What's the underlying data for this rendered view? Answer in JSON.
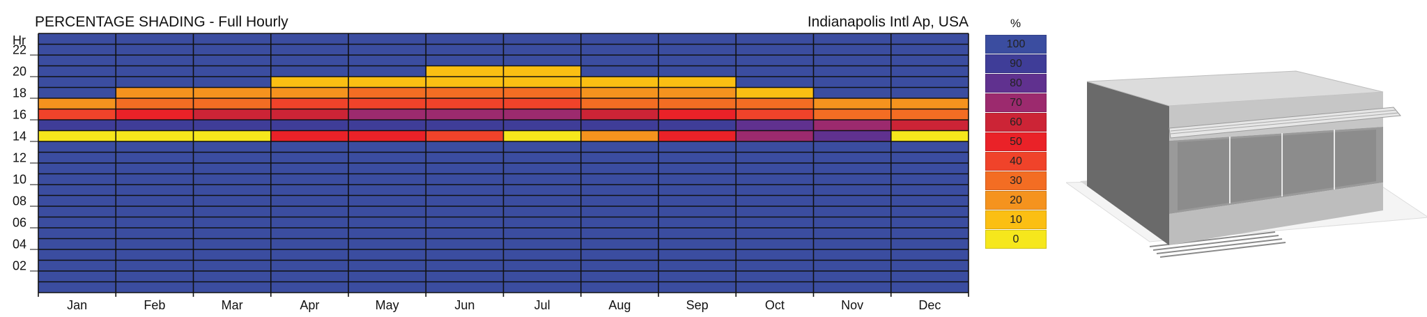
{
  "chart_data": {
    "type": "heatmap",
    "title": "PERCENTAGE SHADING - Full Hourly",
    "location": "Indianapolis Intl Ap, USA",
    "ylabel": "Hr",
    "y_ticks": [
      "22",
      "20",
      "18",
      "16",
      "14",
      "12",
      "10",
      "08",
      "06",
      "04",
      "02"
    ],
    "months": [
      "Jan",
      "Feb",
      "Mar",
      "Apr",
      "May",
      "Jun",
      "Jul",
      "Aug",
      "Sep",
      "Oct",
      "Nov",
      "Dec"
    ],
    "legend_unit": "%",
    "legend": [
      {
        "label": "100",
        "color": "#3b4da0"
      },
      {
        "label": "90",
        "color": "#3f3d98"
      },
      {
        "label": "80",
        "color": "#60318f"
      },
      {
        "label": "70",
        "color": "#9c2a6e"
      },
      {
        "label": "60",
        "color": "#cc2436"
      },
      {
        "label": "50",
        "color": "#ea2228"
      },
      {
        "label": "40",
        "color": "#f0432a"
      },
      {
        "label": "30",
        "color": "#f36d23"
      },
      {
        "label": "20",
        "color": "#f5931e"
      },
      {
        "label": "10",
        "color": "#fbbf13"
      },
      {
        "label": "0",
        "color": "#f6e71c"
      }
    ],
    "default_value": 100,
    "hour_profiles": [
      {
        "hour": 20,
        "values": [
          100,
          100,
          100,
          100,
          100,
          10,
          10,
          100,
          100,
          100,
          100,
          100
        ]
      },
      {
        "hour": 19,
        "values": [
          100,
          100,
          100,
          10,
          10,
          10,
          10,
          10,
          10,
          100,
          100,
          100
        ]
      },
      {
        "hour": 18,
        "values": [
          100,
          20,
          20,
          20,
          30,
          30,
          30,
          20,
          20,
          10,
          100,
          100
        ]
      },
      {
        "hour": 17,
        "values": [
          20,
          30,
          30,
          40,
          40,
          40,
          40,
          30,
          30,
          30,
          20,
          20
        ]
      },
      {
        "hour": 16,
        "values": [
          40,
          50,
          60,
          60,
          70,
          70,
          70,
          60,
          50,
          40,
          30,
          30
        ]
      },
      {
        "hour": 15,
        "values": [
          90,
          90,
          90,
          90,
          90,
          90,
          90,
          90,
          90,
          80,
          70,
          60
        ]
      },
      {
        "hour": 14,
        "values": [
          0,
          0,
          0,
          50,
          50,
          40,
          0,
          20,
          50,
          70,
          80,
          0
        ]
      }
    ]
  }
}
